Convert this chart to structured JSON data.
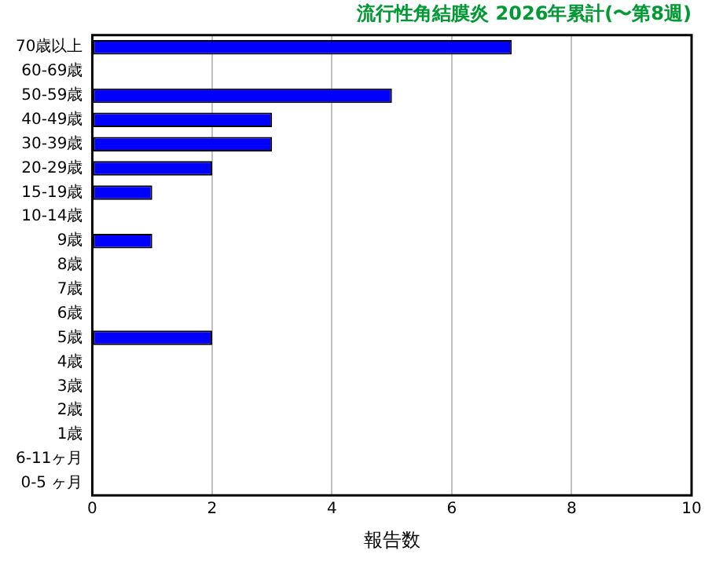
{
  "chart_data": {
    "type": "bar",
    "orientation": "horizontal",
    "title": "流行性角結膜炎 2026年累計(〜第8週)",
    "xlabel": "報告数",
    "categories": [
      "70歳以上",
      "60-69歳",
      "50-59歳",
      "40-49歳",
      "30-39歳",
      "20-29歳",
      "15-19歳",
      "10-14歳",
      "9歳",
      "8歳",
      "7歳",
      "6歳",
      "5歳",
      "4歳",
      "3歳",
      "2歳",
      "1歳",
      "6-11ヶ月",
      "0-5 ヶ月"
    ],
    "values": [
      7,
      0,
      5,
      3,
      3,
      2,
      1,
      0,
      1,
      0,
      0,
      0,
      2,
      0,
      0,
      0,
      0,
      0,
      0
    ],
    "color": "#0000ff",
    "xlim": [
      0,
      10
    ],
    "xticks": [
      0,
      2,
      4,
      6,
      8,
      10
    ],
    "grid": "x"
  }
}
